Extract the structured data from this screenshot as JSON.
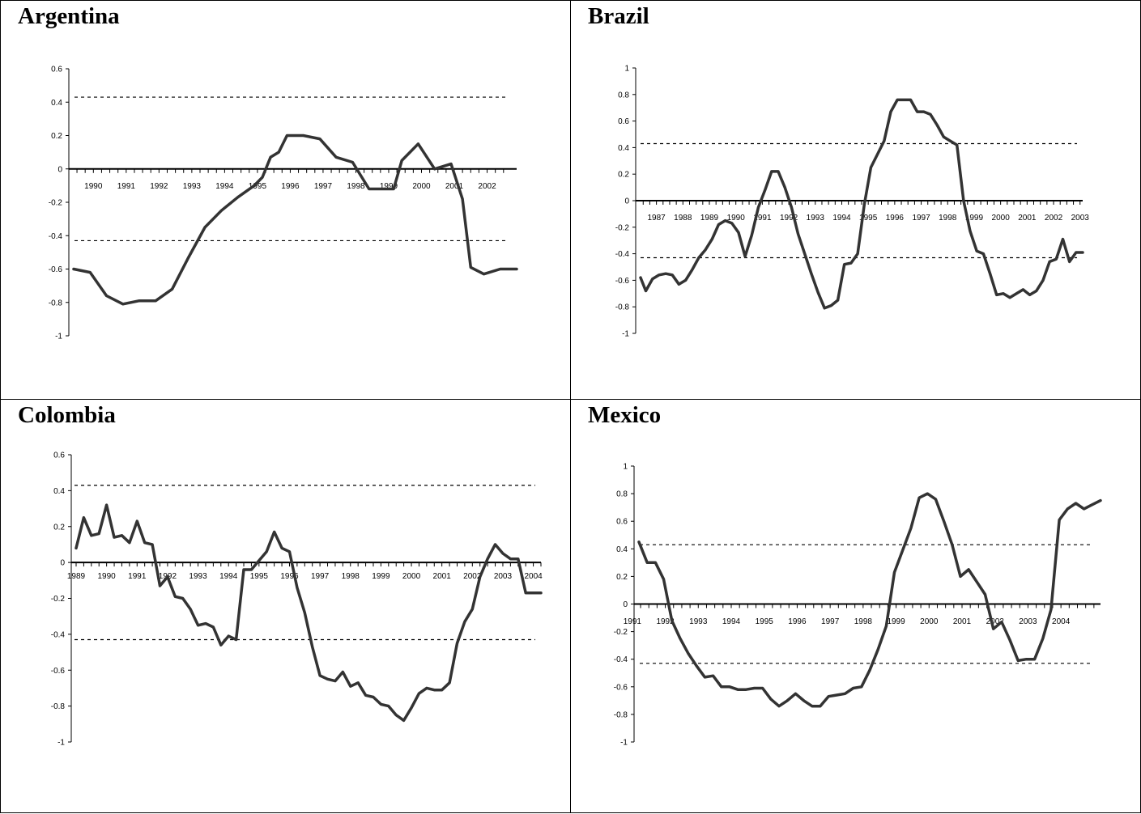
{
  "colors": {
    "line": "#333333",
    "axis": "#000000",
    "threshold": "#000000",
    "border": "#000000"
  },
  "panels": [
    {
      "title": "Argentina"
    },
    {
      "title": "Brazil"
    },
    {
      "title": "Colombia"
    },
    {
      "title": "Mexico"
    }
  ],
  "chart_data": [
    {
      "type": "line",
      "title": "Argentina",
      "xlabel": "",
      "ylabel": "",
      "ylim": [
        -1,
        0.6
      ],
      "yticks": [
        "0.6",
        "0.4",
        "0.2",
        "0",
        "-0.2",
        "-0.4",
        "-0.6",
        "-0.8",
        "-1"
      ],
      "xticklabels": [
        "1990",
        "1991",
        "1992",
        "1993",
        "1994",
        "1995",
        "1996",
        "1997",
        "1998",
        "1999",
        "2000",
        "2001",
        "2002"
      ],
      "thresholds": [
        0.43,
        -0.43
      ],
      "grid": false,
      "legend": "none",
      "x": [
        1989.4,
        1989.9,
        1990.4,
        1990.9,
        1991.4,
        1991.9,
        1992.4,
        1992.9,
        1993.4,
        1993.9,
        1994.4,
        1994.9,
        1995.15,
        1995.4,
        1995.65,
        1995.9,
        1996.4,
        1996.9,
        1997.4,
        1997.9,
        1998.4,
        1998.7,
        1999.15,
        1999.4,
        1999.9,
        2000.4,
        2000.9,
        2001.25,
        2001.5,
        2001.9,
        2002.4,
        2002.9
      ],
      "y": [
        -0.6,
        -0.62,
        -0.76,
        -0.81,
        -0.79,
        -0.79,
        -0.72,
        -0.53,
        -0.35,
        -0.25,
        -0.17,
        -0.1,
        -0.05,
        0.07,
        0.1,
        0.2,
        0.2,
        0.18,
        0.07,
        0.04,
        -0.12,
        -0.12,
        -0.12,
        0.05,
        0.15,
        0.0,
        0.03,
        -0.18,
        -0.59,
        -0.63,
        -0.6,
        -0.6
      ]
    },
    {
      "type": "line",
      "title": "Brazil",
      "xlabel": "",
      "ylabel": "",
      "ylim": [
        -1,
        1
      ],
      "yticks": [
        "1",
        "0.8",
        "0.6",
        "0.4",
        "0.2",
        "0",
        "-0.2",
        "-0.4",
        "-0.6",
        "-0.8",
        "-1"
      ],
      "xticklabels": [
        "1987",
        "1988",
        "1989",
        "1990",
        "1991",
        "1992",
        "1993",
        "1994",
        "1995",
        "1996",
        "1997",
        "1998",
        "1999",
        "2000",
        "2001",
        "2002",
        "2003"
      ],
      "thresholds": [
        0.43,
        -0.43
      ],
      "grid": false,
      "legend": "none",
      "x": [
        1986.4,
        1986.6,
        1986.85,
        1987.1,
        1987.35,
        1987.6,
        1987.85,
        1988.1,
        1988.35,
        1988.6,
        1988.85,
        1989.1,
        1989.35,
        1989.6,
        1989.85,
        1990.1,
        1990.35,
        1990.6,
        1990.85,
        1991.1,
        1991.35,
        1991.6,
        1991.85,
        1992.1,
        1992.35,
        1992.6,
        1992.85,
        1993.1,
        1993.35,
        1993.6,
        1993.85,
        1994.1,
        1994.35,
        1994.6,
        1994.85,
        1995.1,
        1995.35,
        1995.6,
        1995.85,
        1996.1,
        1996.35,
        1996.6,
        1996.85,
        1997.1,
        1997.35,
        1997.6,
        1997.85,
        1998.1,
        1998.35,
        1998.6,
        1998.85,
        1999.1,
        1999.35,
        1999.6,
        1999.85,
        2000.1,
        2000.35,
        2000.6,
        2000.85,
        2001.1,
        2001.35,
        2001.6,
        2001.85,
        2002.1,
        2002.35,
        2002.6,
        2002.85,
        2003.1
      ],
      "y": [
        -0.58,
        -0.68,
        -0.59,
        -0.56,
        -0.55,
        -0.56,
        -0.63,
        -0.6,
        -0.52,
        -0.43,
        -0.37,
        -0.29,
        -0.18,
        -0.15,
        -0.17,
        -0.24,
        -0.42,
        -0.26,
        -0.05,
        0.08,
        0.22,
        0.22,
        0.1,
        -0.05,
        -0.25,
        -0.4,
        -0.55,
        -0.69,
        -0.81,
        -0.79,
        -0.75,
        -0.48,
        -0.47,
        -0.4,
        -0.03,
        0.25,
        0.35,
        0.45,
        0.67,
        0.76,
        0.76,
        0.76,
        0.67,
        0.67,
        0.65,
        0.57,
        0.48,
        0.45,
        0.42,
        0.0,
        -0.23,
        -0.38,
        -0.4,
        -0.55,
        -0.71,
        -0.7,
        -0.73,
        -0.7,
        -0.67,
        -0.71,
        -0.68,
        -0.6,
        -0.46,
        -0.44,
        -0.29,
        -0.46,
        -0.39,
        -0.39
      ]
    },
    {
      "type": "line",
      "title": "Colombia",
      "xlabel": "",
      "ylabel": "",
      "ylim": [
        -1,
        0.6
      ],
      "yticks": [
        "0.6",
        "0.4",
        "0.2",
        "0",
        "-0.2",
        "-0.4",
        "-0.6",
        "-0.8",
        "-1"
      ],
      "xticklabels": [
        "1989",
        "1990",
        "1991",
        "1992",
        "1993",
        "1994",
        "1995",
        "1996",
        "1997",
        "1998",
        "1999",
        "2000",
        "2001",
        "2002",
        "2003",
        "2004"
      ],
      "thresholds": [
        0.43,
        -0.43
      ],
      "grid": false,
      "legend": "none",
      "x": [
        1989.0,
        1989.25,
        1989.5,
        1989.75,
        1990.0,
        1990.25,
        1990.5,
        1990.75,
        1991.0,
        1991.25,
        1991.5,
        1991.75,
        1992.0,
        1992.25,
        1992.5,
        1992.75,
        1993.0,
        1993.25,
        1993.5,
        1993.75,
        1994.0,
        1994.25,
        1994.5,
        1994.75,
        1995.0,
        1995.25,
        1995.5,
        1995.75,
        1996.0,
        1996.25,
        1996.5,
        1996.75,
        1997.0,
        1997.25,
        1997.5,
        1997.75,
        1998.0,
        1998.25,
        1998.5,
        1998.75,
        1999.0,
        1999.25,
        1999.5,
        1999.75,
        2000.0,
        2000.25,
        2000.5,
        2000.75,
        2001.0,
        2001.25,
        2001.5,
        2001.75,
        2002.0,
        2002.25,
        2002.5,
        2002.75,
        2003.0,
        2003.25,
        2003.5,
        2003.75,
        2004.0,
        2004.25
      ],
      "y": [
        0.08,
        0.25,
        0.15,
        0.16,
        0.32,
        0.14,
        0.15,
        0.11,
        0.23,
        0.11,
        0.1,
        -0.13,
        -0.08,
        -0.19,
        -0.2,
        -0.26,
        -0.35,
        -0.34,
        -0.36,
        -0.46,
        -0.41,
        -0.43,
        -0.04,
        -0.04,
        0.01,
        0.06,
        0.17,
        0.08,
        0.06,
        -0.14,
        -0.28,
        -0.47,
        -0.63,
        -0.65,
        -0.66,
        -0.61,
        -0.69,
        -0.67,
        -0.74,
        -0.75,
        -0.79,
        -0.8,
        -0.85,
        -0.88,
        -0.81,
        -0.73,
        -0.7,
        -0.71,
        -0.71,
        -0.67,
        -0.45,
        -0.33,
        -0.26,
        -0.08,
        0.02,
        0.1,
        0.05,
        0.02,
        0.02,
        -0.17,
        -0.17,
        -0.17
      ]
    },
    {
      "type": "line",
      "title": "Mexico",
      "xlabel": "",
      "ylabel": "",
      "ylim": [
        -1,
        1
      ],
      "yticks": [
        "1",
        "0.8",
        "0.6",
        "0.4",
        "0.2",
        "0",
        "-0.2",
        "-0.4",
        "-0.6",
        "-0.8",
        "-1"
      ],
      "xticklabels": [
        "1991",
        "1992",
        "1993",
        "1994",
        "1995",
        "1996",
        "1997",
        "1998",
        "1999",
        "2000",
        "2001",
        "2002",
        "2003",
        "2004"
      ],
      "thresholds": [
        0.43,
        -0.43
      ],
      "grid": false,
      "legend": "none",
      "x": [
        1991.2,
        1991.45,
        1991.7,
        1991.95,
        1992.2,
        1992.45,
        1992.7,
        1992.95,
        1993.2,
        1993.45,
        1993.7,
        1993.95,
        1994.2,
        1994.45,
        1994.7,
        1994.95,
        1995.2,
        1995.45,
        1995.7,
        1995.95,
        1996.2,
        1996.45,
        1996.7,
        1996.95,
        1997.2,
        1997.45,
        1997.7,
        1997.95,
        1998.2,
        1998.45,
        1998.7,
        1998.95,
        1999.2,
        1999.45,
        1999.7,
        1999.95,
        2000.2,
        2000.45,
        2000.7,
        2000.95,
        2001.2,
        2001.45,
        2001.7,
        2001.95,
        2002.2,
        2002.45,
        2002.7,
        2002.95,
        2003.2,
        2003.45,
        2003.7,
        2003.95,
        2004.2,
        2004.45,
        2004.7,
        2004.95,
        2005.2
      ],
      "y": [
        0.45,
        0.3,
        0.3,
        0.18,
        -0.12,
        -0.25,
        -0.36,
        -0.45,
        -0.53,
        -0.52,
        -0.6,
        -0.6,
        -0.62,
        -0.62,
        -0.61,
        -0.61,
        -0.69,
        -0.74,
        -0.7,
        -0.65,
        -0.7,
        -0.74,
        -0.74,
        -0.67,
        -0.66,
        -0.65,
        -0.61,
        -0.6,
        -0.48,
        -0.33,
        -0.16,
        0.23,
        0.39,
        0.55,
        0.77,
        0.8,
        0.76,
        0.6,
        0.43,
        0.2,
        0.25,
        0.16,
        0.07,
        -0.18,
        -0.13,
        -0.26,
        -0.41,
        -0.4,
        -0.4,
        -0.25,
        -0.04,
        0.61,
        0.69,
        0.73,
        0.69,
        0.72,
        0.75
      ]
    }
  ]
}
